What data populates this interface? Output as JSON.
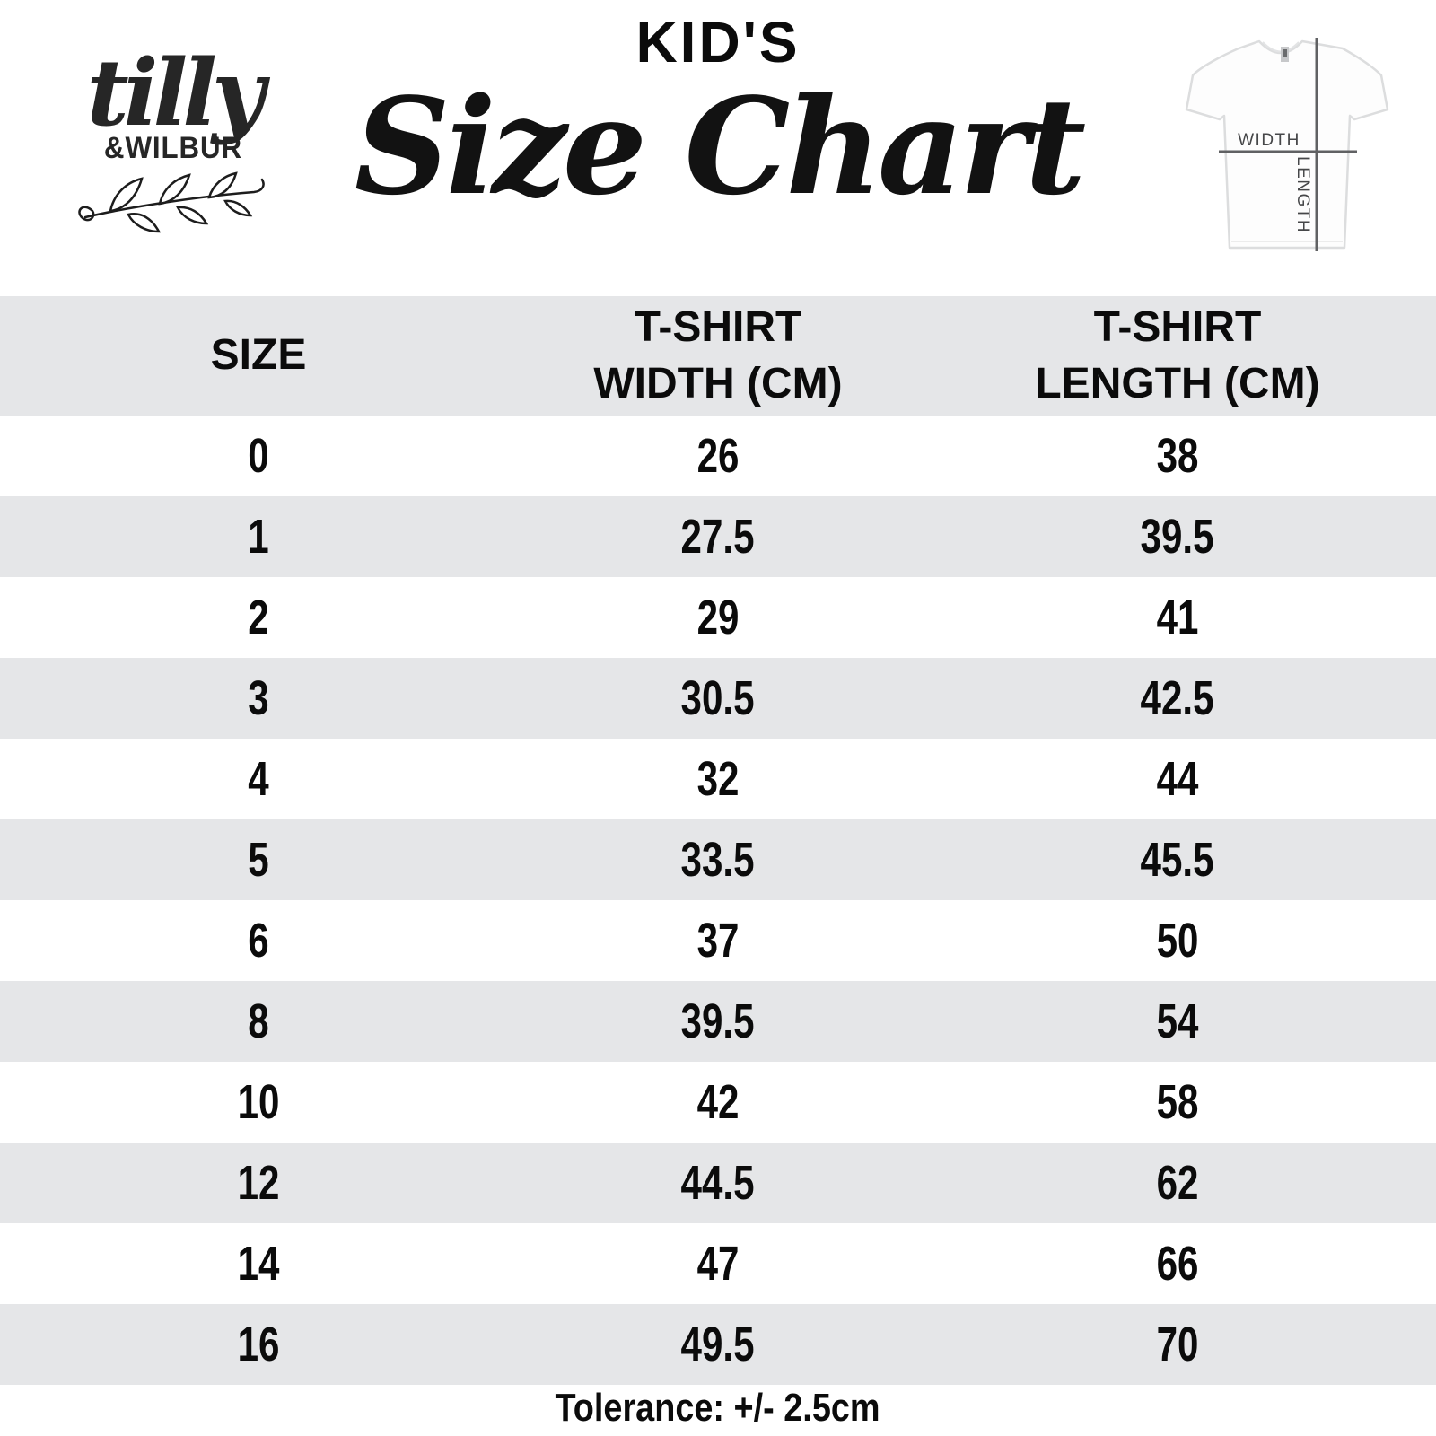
{
  "brand": {
    "script": "tilly",
    "caps": "&WILBUR"
  },
  "title": {
    "kicker": "KID'S",
    "main": "Size Chart"
  },
  "tshirt_diagram": {
    "width_label": "WIDTH",
    "length_label": "LENGTH"
  },
  "chart_data": {
    "type": "table",
    "title": "KID'S Size Chart",
    "columns": [
      "SIZE",
      "T-SHIRT\nWIDTH (CM)",
      "T-SHIRT\nLENGTH (CM)"
    ],
    "rows": [
      {
        "size": "0",
        "width": "26",
        "length": "38"
      },
      {
        "size": "1",
        "width": "27.5",
        "length": "39.5"
      },
      {
        "size": "2",
        "width": "29",
        "length": "41"
      },
      {
        "size": "3",
        "width": "30.5",
        "length": "42.5"
      },
      {
        "size": "4",
        "width": "32",
        "length": "44"
      },
      {
        "size": "5",
        "width": "33.5",
        "length": "45.5"
      },
      {
        "size": "6",
        "width": "37",
        "length": "50"
      },
      {
        "size": "8",
        "width": "39.5",
        "length": "54"
      },
      {
        "size": "10",
        "width": "42",
        "length": "58"
      },
      {
        "size": "12",
        "width": "44.5",
        "length": "62"
      },
      {
        "size": "14",
        "width": "47",
        "length": "66"
      },
      {
        "size": "16",
        "width": "49.5",
        "length": "70"
      }
    ],
    "footnote": "Tolerance: +/- 2.5cm"
  },
  "colors": {
    "stripe": "#e5e6e8",
    "text": "#0b0b0b",
    "diagram_line": "#606163"
  }
}
